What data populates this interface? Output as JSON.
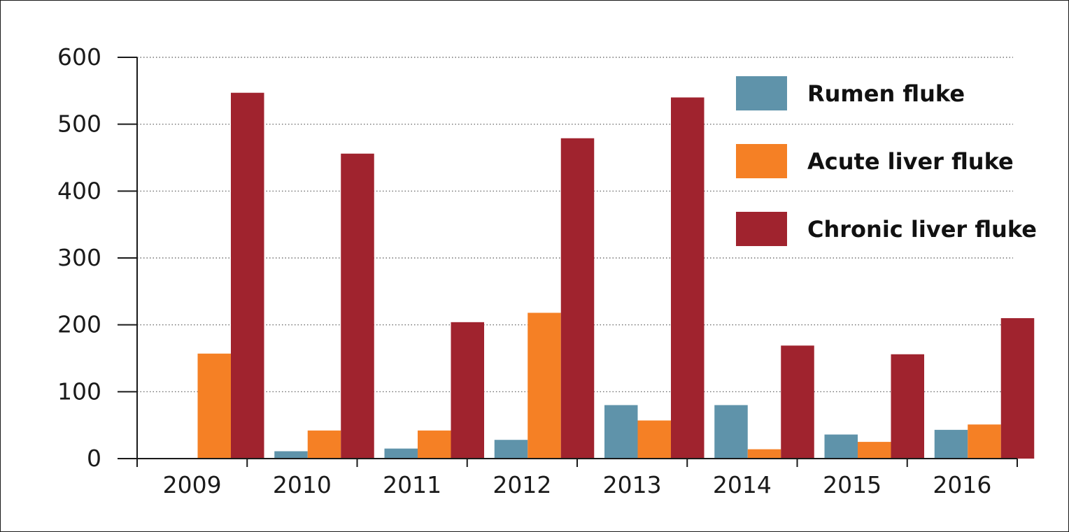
{
  "chart_data": {
    "type": "bar",
    "categories": [
      "2009",
      "2010",
      "2011",
      "2012",
      "2013",
      "2014",
      "2015",
      "2016"
    ],
    "series": [
      {
        "name": "Rumen fluke",
        "color": "#5f93aa",
        "values": [
          0,
          11,
          15,
          28,
          80,
          80,
          36,
          43
        ]
      },
      {
        "name": "Acute liver fluke",
        "color": "#f58025",
        "values": [
          157,
          42,
          42,
          218,
          57,
          14,
          25,
          51
        ]
      },
      {
        "name": "Chronic liver fluke",
        "color": "#a0232e",
        "values": [
          547,
          456,
          204,
          479,
          540,
          169,
          156,
          210
        ]
      }
    ],
    "yticks": [
      "0",
      "100",
      "200",
      "300",
      "400",
      "500",
      "600"
    ],
    "ylim": [
      0,
      600
    ],
    "grid": "horizontal-dotted",
    "legend_position": "top-right",
    "title": "",
    "xlabel": "",
    "ylabel": ""
  }
}
